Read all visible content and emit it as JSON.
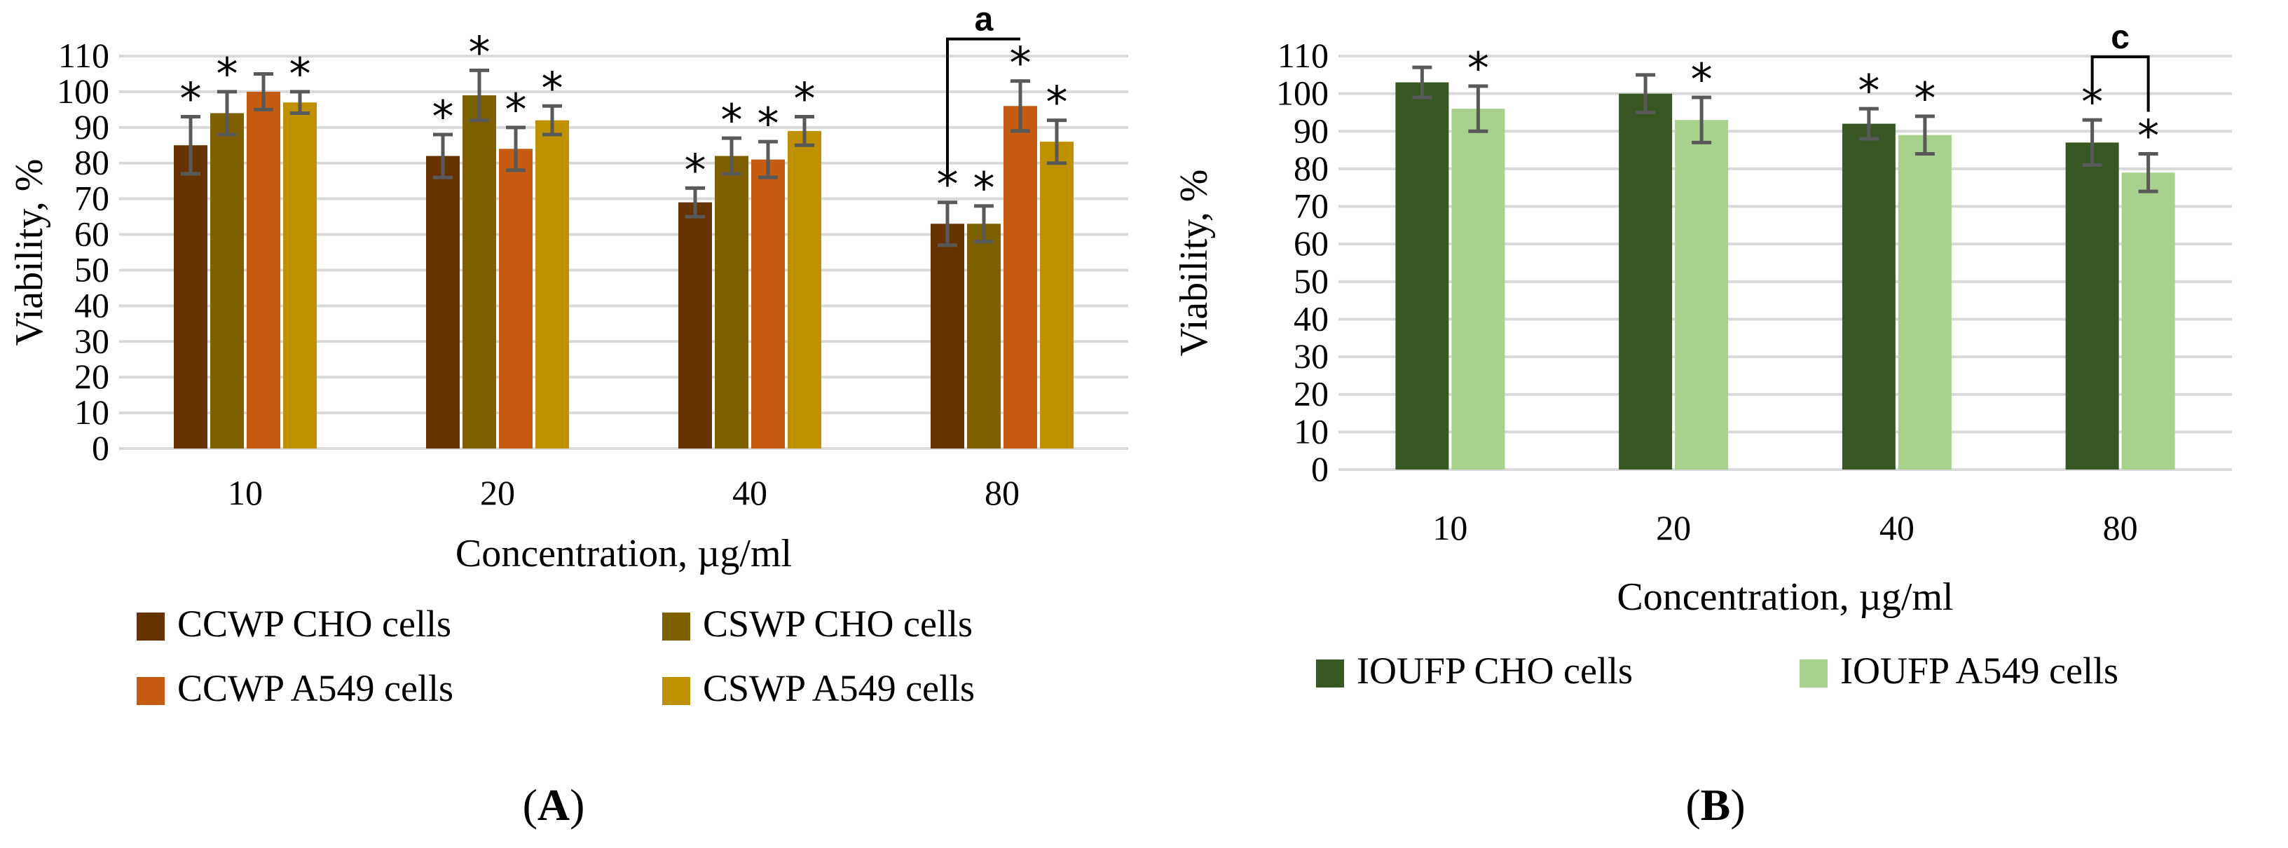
{
  "chart_data": [
    {
      "panel": "A",
      "type": "bar",
      "title": "",
      "xlabel": "Concentration, µg/ml",
      "ylabel": "Viability, %",
      "ylim": [
        0,
        110
      ],
      "ytick_step": 10,
      "grid": true,
      "categories": [
        "10",
        "20",
        "40",
        "80"
      ],
      "series": [
        {
          "name": "CCWP CHO cells",
          "color": "#663300",
          "values": [
            85,
            82,
            69,
            63
          ],
          "errors": [
            8,
            6,
            4,
            6
          ],
          "stars": [
            true,
            true,
            true,
            true
          ]
        },
        {
          "name": "CSWP CHO cells",
          "color": "#7F6000",
          "values": [
            94,
            99,
            82,
            63
          ],
          "errors": [
            6,
            7,
            5,
            5
          ],
          "stars": [
            true,
            true,
            true,
            true
          ]
        },
        {
          "name": "CCWP A549 cells",
          "color": "#C55A11",
          "values": [
            100,
            84,
            81,
            96
          ],
          "errors": [
            5,
            6,
            5,
            7
          ],
          "stars": [
            false,
            true,
            true,
            true
          ]
        },
        {
          "name": "CSWP A549 cells",
          "color": "#BF9000",
          "values": [
            97,
            92,
            89,
            86
          ],
          "errors": [
            3,
            4,
            4,
            6
          ],
          "stars": [
            true,
            true,
            true,
            true
          ]
        }
      ],
      "legend_position": "bottom",
      "brackets": [
        {
          "label": "a",
          "category": "80",
          "from_series": 0,
          "to_series": 2
        }
      ],
      "panel_label": {
        "open": "(",
        "letter": "A",
        "close": ")"
      }
    },
    {
      "panel": "B",
      "type": "bar",
      "title": "",
      "xlabel": "Concentration, µg/ml",
      "ylabel": "Viability, %",
      "ylim": [
        0,
        110
      ],
      "ytick_step": 10,
      "grid": true,
      "categories": [
        "10",
        "20",
        "40",
        "80"
      ],
      "series": [
        {
          "name": "IOUFP CHO cells",
          "color": "#385723",
          "values": [
            103,
            100,
            92,
            87
          ],
          "errors": [
            4,
            5,
            4,
            6
          ],
          "stars": [
            false,
            false,
            true,
            true
          ]
        },
        {
          "name": "IOUFP A549 cells",
          "color": "#A9D18E",
          "values": [
            96,
            93,
            89,
            79
          ],
          "errors": [
            6,
            6,
            5,
            5
          ],
          "stars": [
            true,
            true,
            true,
            true
          ]
        }
      ],
      "legend_position": "bottom",
      "brackets": [
        {
          "label": "c",
          "category": "80",
          "from_series": 0,
          "to_series": 1
        }
      ],
      "panel_label": {
        "open": "(",
        "letter": "B",
        "close": ")"
      }
    }
  ],
  "star_symbol": "*"
}
